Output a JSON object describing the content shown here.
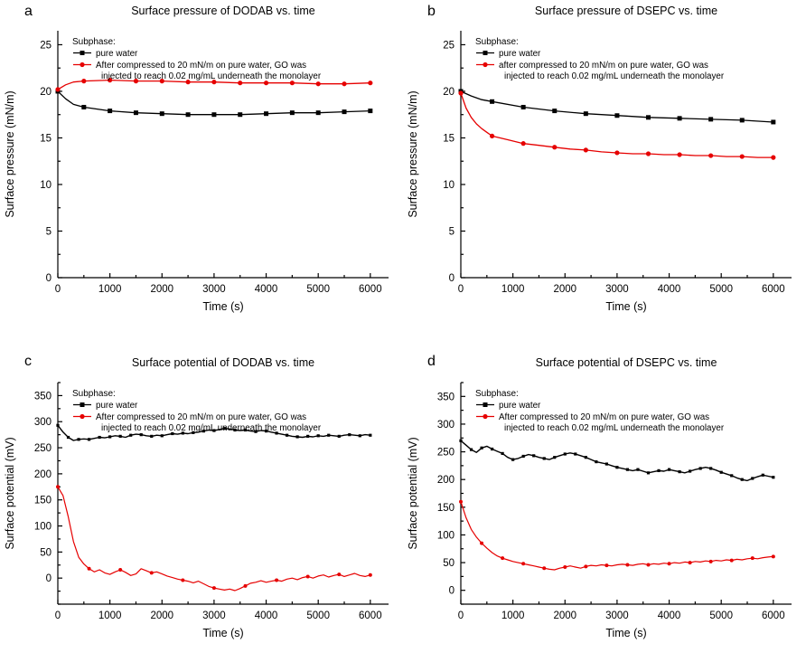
{
  "page": {
    "background": "#ffffff"
  },
  "colors": {
    "series_black": "#000000",
    "series_red": "#e60000",
    "axis": "#000000"
  },
  "chart_data": [
    {
      "type": "line",
      "letter": "a",
      "title": "Surface pressure of DODAB vs. time",
      "xlabel": "Time (s)",
      "ylabel": "Surface pressure (mN/m)",
      "xlim": [
        0,
        6350
      ],
      "ylim": [
        0,
        26.5
      ],
      "xticks": [
        0,
        1000,
        2000,
        3000,
        4000,
        5000,
        6000
      ],
      "yticks": [
        0,
        5,
        10,
        15,
        20,
        25
      ],
      "x_minor_step": 500,
      "y_minor_step": 2.5,
      "legend": {
        "heading": "Subphase:",
        "entries": [
          {
            "label": "pure water",
            "lines": [
              "pure water"
            ],
            "marker": "square",
            "color": "#000000"
          },
          {
            "label": "After compressed to 20 mN/m on pure water, GO was injected to reach 0.02 mg/mL underneath the monolayer",
            "lines": [
              "After compressed to 20 mN/m on pure water, GO was",
              "injected to reach 0.02 mg/mL underneath the monolayer"
            ],
            "marker": "circle",
            "color": "#e60000"
          }
        ]
      },
      "series": [
        {
          "name": "pure water",
          "color": "#000000",
          "marker": "square",
          "marker_size": 5,
          "line_width": 1.3,
          "x": [
            0,
            150,
            300,
            500,
            1000,
            1500,
            2000,
            2500,
            3000,
            3500,
            4000,
            4500,
            5000,
            5500,
            6000
          ],
          "y": [
            20.0,
            19.2,
            18.6,
            18.3,
            17.9,
            17.7,
            17.6,
            17.5,
            17.5,
            17.5,
            17.6,
            17.7,
            17.7,
            17.8,
            17.9
          ],
          "marker_indices": [
            0,
            3,
            4,
            5,
            6,
            7,
            8,
            9,
            10,
            11,
            12,
            13,
            14
          ]
        },
        {
          "name": "GO injected",
          "color": "#e60000",
          "marker": "circle",
          "marker_size": 5.2,
          "line_width": 1.3,
          "x": [
            0,
            150,
            300,
            500,
            1000,
            1500,
            2000,
            2500,
            3000,
            3500,
            4000,
            4500,
            5000,
            5500,
            6000
          ],
          "y": [
            20.2,
            20.7,
            21.0,
            21.1,
            21.2,
            21.1,
            21.1,
            21.0,
            21.0,
            20.9,
            20.9,
            20.9,
            20.8,
            20.8,
            20.9
          ],
          "marker_indices": [
            0,
            3,
            4,
            5,
            6,
            7,
            8,
            9,
            10,
            11,
            12,
            13,
            14
          ]
        }
      ]
    },
    {
      "type": "line",
      "letter": "b",
      "title": "Surface pressure of DSEPC vs. time",
      "xlabel": "Time (s)",
      "ylabel": "Surface pressure (mN/m)",
      "xlim": [
        0,
        6350
      ],
      "ylim": [
        0,
        26.5
      ],
      "xticks": [
        0,
        1000,
        2000,
        3000,
        4000,
        5000,
        6000
      ],
      "yticks": [
        0,
        5,
        10,
        15,
        20,
        25
      ],
      "x_minor_step": 500,
      "y_minor_step": 2.5,
      "legend": {
        "heading": "Subphase:",
        "entries": [
          {
            "label": "pure water",
            "lines": [
              "pure water"
            ],
            "marker": "square",
            "color": "#000000"
          },
          {
            "label": "after compressed to 20 mN/m on pure water, GO was injected to reach 0.02 mg/mL underneath the monolayer",
            "lines": [
              "after compressed to 20 mN/m on pure water, GO was",
              "injected to reach 0.02 mg/mL underneath the monolayer"
            ],
            "marker": "circle",
            "color": "#e60000"
          }
        ]
      },
      "series": [
        {
          "name": "pure water",
          "color": "#000000",
          "marker": "square",
          "marker_size": 5,
          "line_width": 1.3,
          "x": [
            0,
            200,
            400,
            600,
            1200,
            1800,
            2400,
            3000,
            3600,
            4200,
            4800,
            5400,
            6000
          ],
          "y": [
            20.0,
            19.5,
            19.1,
            18.9,
            18.3,
            17.9,
            17.6,
            17.4,
            17.2,
            17.1,
            17.0,
            16.9,
            16.7
          ],
          "marker_indices": [
            0,
            3,
            4,
            5,
            6,
            7,
            8,
            9,
            10,
            11,
            12
          ]
        },
        {
          "name": "GO injected",
          "color": "#e60000",
          "marker": "circle",
          "marker_size": 5.2,
          "line_width": 1.3,
          "x": [
            0,
            100,
            200,
            300,
            400,
            500,
            600,
            900,
            1200,
            1500,
            1800,
            2100,
            2400,
            2700,
            3000,
            3300,
            3600,
            3900,
            4200,
            4500,
            4800,
            5100,
            5400,
            5700,
            6000
          ],
          "y": [
            19.8,
            18.2,
            17.2,
            16.5,
            16.0,
            15.6,
            15.2,
            14.8,
            14.4,
            14.2,
            14.0,
            13.8,
            13.7,
            13.5,
            13.4,
            13.3,
            13.3,
            13.2,
            13.2,
            13.1,
            13.1,
            13.0,
            13.0,
            12.9,
            12.9
          ],
          "marker_indices": [
            0,
            6,
            8,
            10,
            12,
            14,
            16,
            18,
            20,
            22,
            24
          ]
        }
      ]
    },
    {
      "type": "line",
      "letter": "c",
      "title": "Surface potential of DODAB vs. time",
      "xlabel": "Time (s)",
      "ylabel": "Surface potential (mV)",
      "xlim": [
        0,
        6350
      ],
      "ylim": [
        -50,
        375
      ],
      "xticks": [
        0,
        1000,
        2000,
        3000,
        4000,
        5000,
        6000
      ],
      "yticks": [
        0,
        50,
        100,
        150,
        200,
        250,
        300,
        350
      ],
      "x_minor_step": 500,
      "y_minor_step": 25,
      "legend": {
        "heading": "Subphase:",
        "entries": [
          {
            "label": "pure water",
            "lines": [
              "pure water"
            ],
            "marker": "square",
            "color": "#000000"
          },
          {
            "label": "After compressed to 20 mN/m on pure water, GO was injected to reach 0.02 mg/mL underneath the monolayer",
            "lines": [
              "After compressed to 20 mN/m on pure water, GO was",
              "injected to reach 0.02 mg/mL underneath the monolayer"
            ],
            "marker": "circle",
            "color": "#e60000"
          }
        ]
      },
      "series": [
        {
          "name": "pure water",
          "color": "#000000",
          "marker": "square",
          "marker_size": 3.2,
          "line_width": 1.4,
          "x_start": 0,
          "x_step": 100,
          "marker_every": 2,
          "y": [
            293,
            280,
            270,
            264,
            266,
            267,
            266,
            268,
            270,
            269,
            271,
            273,
            272,
            270,
            274,
            276,
            275,
            273,
            272,
            274,
            273,
            275,
            277,
            276,
            278,
            277,
            279,
            280,
            282,
            284,
            283,
            285,
            287,
            286,
            284,
            283,
            284,
            282,
            281,
            283,
            282,
            280,
            278,
            276,
            274,
            272,
            271,
            270,
            272,
            271,
            273,
            272,
            274,
            273,
            272,
            274,
            275,
            274,
            273,
            275,
            274
          ]
        },
        {
          "name": "GO injected",
          "color": "#e60000",
          "marker": "circle",
          "marker_size": 4,
          "line_width": 1.2,
          "x_start": 0,
          "x_step": 100,
          "marker_every": 6,
          "y": [
            175,
            158,
            118,
            70,
            40,
            27,
            18,
            12,
            16,
            10,
            7,
            12,
            16,
            11,
            5,
            8,
            18,
            14,
            10,
            12,
            8,
            4,
            1,
            -2,
            -4,
            -6,
            -9,
            -6,
            -11,
            -16,
            -19,
            -21,
            -23,
            -21,
            -24,
            -20,
            -15,
            -10,
            -8,
            -5,
            -8,
            -6,
            -4,
            -6,
            -2,
            0,
            -3,
            1,
            3,
            0,
            4,
            6,
            2,
            5,
            7,
            3,
            6,
            9,
            5,
            3,
            6
          ]
        }
      ]
    },
    {
      "type": "line",
      "letter": "d",
      "title": "Surface potential of DSEPC vs. time",
      "xlabel": "Time (s)",
      "ylabel": "Surface potential (mV)",
      "xlim": [
        0,
        6350
      ],
      "ylim": [
        -25,
        375
      ],
      "xticks": [
        0,
        1000,
        2000,
        3000,
        4000,
        5000,
        6000
      ],
      "yticks": [
        0,
        50,
        100,
        150,
        200,
        250,
        300,
        350
      ],
      "x_minor_step": 500,
      "y_minor_step": 25,
      "legend": {
        "heading": "Subphase:",
        "entries": [
          {
            "label": "pure water",
            "lines": [
              "pure water"
            ],
            "marker": "square",
            "color": "#000000"
          },
          {
            "label": "After compressed to 20 mN/m on pure water, GO was injected to reach 0.02 mg/mL underneath the monolayer",
            "lines": [
              "After compressed to 20 mN/m on pure water, GO was",
              "injected to reach 0.02 mg/mL underneath the monolayer"
            ],
            "marker": "circle",
            "color": "#e60000"
          }
        ]
      },
      "series": [
        {
          "name": "pure water",
          "color": "#000000",
          "marker": "square",
          "marker_size": 3.2,
          "line_width": 1.4,
          "x_start": 0,
          "x_step": 100,
          "marker_every": 2,
          "y": [
            270,
            262,
            254,
            249,
            257,
            260,
            255,
            251,
            247,
            240,
            236,
            238,
            242,
            245,
            243,
            240,
            238,
            236,
            240,
            243,
            246,
            248,
            246,
            243,
            240,
            236,
            232,
            230,
            228,
            225,
            222,
            220,
            218,
            216,
            218,
            215,
            212,
            214,
            216,
            215,
            218,
            216,
            214,
            212,
            215,
            218,
            220,
            222,
            220,
            217,
            213,
            210,
            207,
            203,
            200,
            198,
            202,
            205,
            208,
            206,
            204
          ]
        },
        {
          "name": "GO injected",
          "color": "#e60000",
          "marker": "circle",
          "marker_size": 4,
          "line_width": 1.2,
          "x_start": 0,
          "x_step": 100,
          "marker_every": 4,
          "y": [
            160,
            131,
            110,
            96,
            85,
            76,
            68,
            62,
            58,
            55,
            52,
            50,
            48,
            46,
            44,
            42,
            40,
            38,
            37,
            40,
            42,
            44,
            42,
            40,
            43,
            45,
            44,
            46,
            45,
            44,
            46,
            47,
            46,
            45,
            47,
            48,
            46,
            48,
            47,
            49,
            48,
            50,
            49,
            51,
            50,
            52,
            51,
            53,
            52,
            54,
            53,
            55,
            54,
            56,
            55,
            57,
            58,
            57,
            59,
            60,
            61
          ]
        }
      ]
    }
  ]
}
